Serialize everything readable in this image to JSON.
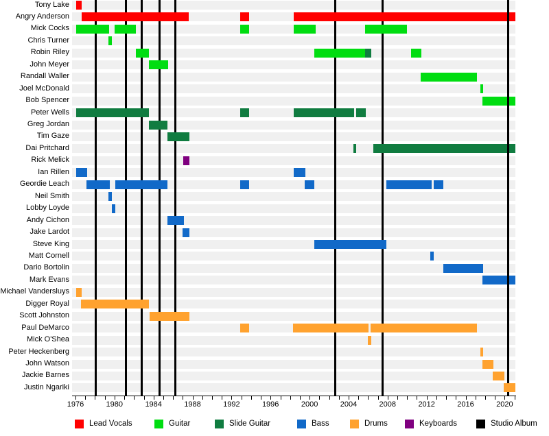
{
  "chart_data": {
    "type": "timeline-gantt",
    "description": "Band members timeline chart: horizontal colored bars per member by role over years, with vertical black lines marking studio albums",
    "axis": {
      "start_year": 1975.65,
      "end_year": 2021.1,
      "minor_tick_start": 1976,
      "minor_tick_end": 2021,
      "label_years": [
        1976,
        1980,
        1984,
        1988,
        1992,
        1996,
        2000,
        2004,
        2008,
        2012,
        2016,
        2020
      ]
    },
    "colors": {
      "lead_vocals": "#ff0000",
      "guitar": "#00dd11",
      "slide_guitar": "#107c40",
      "bass": "#1169c8",
      "drums": "#ffa22f",
      "keyboards": "#800080",
      "studio_album": "#000000",
      "row_stripe": "#f0f0f0"
    },
    "legend": [
      {
        "label": "Lead Vocals",
        "role": "lead_vocals"
      },
      {
        "label": "Guitar",
        "role": "guitar"
      },
      {
        "label": "Slide Guitar",
        "role": "slide_guitar"
      },
      {
        "label": "Bass",
        "role": "bass"
      },
      {
        "label": "Drums",
        "role": "drums"
      },
      {
        "label": "Keyboards",
        "role": "keyboards"
      },
      {
        "label": "Studio Album",
        "role": "studio_album"
      }
    ],
    "album_lines": [
      {
        "year": 1978.1,
        "layer": "back"
      },
      {
        "year": 1981.15,
        "layer": "back"
      },
      {
        "year": 1982.8,
        "layer": "back"
      },
      {
        "year": 1984.65,
        "layer": "back"
      },
      {
        "year": 1986.2,
        "layer": "back"
      },
      {
        "year": 2002.6,
        "layer": "back"
      },
      {
        "year": 2007.5,
        "layer": "back"
      },
      {
        "year": 2020.35,
        "layer": "front"
      }
    ],
    "members": [
      {
        "name": "Tony Lake",
        "spans": [
          {
            "role": "lead_vocals",
            "start": 1976.05,
            "end": 1976.65
          }
        ]
      },
      {
        "name": "Angry Anderson",
        "spans": [
          {
            "role": "lead_vocals",
            "start": 1976.65,
            "end": 1987.65
          },
          {
            "role": "lead_vocals",
            "start": 1992.9,
            "end": 1993.8
          },
          {
            "role": "lead_vocals",
            "start": 1998.35,
            "end": 2021.1
          }
        ]
      },
      {
        "name": "Mick Cocks",
        "spans": [
          {
            "role": "guitar",
            "start": 1976.05,
            "end": 1979.45
          },
          {
            "role": "guitar",
            "start": 1980.0,
            "end": 1982.2
          },
          {
            "role": "guitar",
            "start": 1992.9,
            "end": 1993.8
          },
          {
            "role": "guitar",
            "start": 1998.35,
            "end": 2000.6
          },
          {
            "role": "guitar",
            "start": 2005.7,
            "end": 2010.0
          }
        ]
      },
      {
        "name": "Chris Turner",
        "spans": [
          {
            "role": "guitar",
            "start": 1979.35,
            "end": 1979.7
          }
        ]
      },
      {
        "name": "Robin Riley",
        "spans": [
          {
            "role": "guitar",
            "start": 1982.2,
            "end": 1983.55
          },
          {
            "role": "guitar",
            "start": 2000.5,
            "end": 2005.7
          },
          {
            "role": "slide_guitar",
            "start": 2005.7,
            "end": 2006.35
          },
          {
            "role": "guitar",
            "start": 2010.4,
            "end": 2011.5
          }
        ]
      },
      {
        "name": "John Meyer",
        "spans": [
          {
            "role": "guitar",
            "start": 1983.55,
            "end": 1985.5
          }
        ]
      },
      {
        "name": "Randall Waller",
        "spans": [
          {
            "role": "guitar",
            "start": 2011.4,
            "end": 2017.2
          }
        ]
      },
      {
        "name": "Joel McDonald",
        "spans": [
          {
            "role": "guitar",
            "start": 2017.5,
            "end": 2017.8
          }
        ]
      },
      {
        "name": "Bob Spencer",
        "spans": [
          {
            "role": "guitar",
            "start": 2017.7,
            "end": 2021.1
          }
        ]
      },
      {
        "name": "Peter Wells",
        "spans": [
          {
            "role": "slide_guitar",
            "start": 1976.05,
            "end": 1983.55
          },
          {
            "role": "slide_guitar",
            "start": 1992.9,
            "end": 1993.8
          },
          {
            "role": "slide_guitar",
            "start": 1998.35,
            "end": 2004.55
          },
          {
            "role": "slide_guitar",
            "start": 2004.8,
            "end": 2005.8
          }
        ]
      },
      {
        "name": "Greg Jordan",
        "spans": [
          {
            "role": "slide_guitar",
            "start": 1983.55,
            "end": 1985.45
          }
        ]
      },
      {
        "name": "Tim Gaze",
        "spans": [
          {
            "role": "slide_guitar",
            "start": 1985.4,
            "end": 1987.65
          }
        ]
      },
      {
        "name": "Dai Pritchard",
        "spans": [
          {
            "role": "slide_guitar",
            "start": 2004.5,
            "end": 2004.8
          },
          {
            "role": "slide_guitar",
            "start": 2006.5,
            "end": 2021.1
          }
        ]
      },
      {
        "name": "Rick Melick",
        "spans": [
          {
            "role": "keyboards",
            "start": 1987.05,
            "end": 1987.65
          }
        ]
      },
      {
        "name": "Ian Rillen",
        "spans": [
          {
            "role": "bass",
            "start": 1976.05,
            "end": 1977.2
          },
          {
            "role": "bass",
            "start": 1998.35,
            "end": 1999.6
          }
        ]
      },
      {
        "name": "Geordie Leach",
        "spans": [
          {
            "role": "bass",
            "start": 1977.1,
            "end": 1979.5
          },
          {
            "role": "bass",
            "start": 1980.1,
            "end": 1985.45
          },
          {
            "role": "bass",
            "start": 1992.9,
            "end": 1993.8
          },
          {
            "role": "bass",
            "start": 1999.5,
            "end": 2000.5
          },
          {
            "role": "bass",
            "start": 2007.85,
            "end": 2012.5
          },
          {
            "role": "bass",
            "start": 2012.7,
            "end": 2013.75
          }
        ]
      },
      {
        "name": "Neil Smith",
        "spans": [
          {
            "role": "bass",
            "start": 1979.4,
            "end": 1979.7
          }
        ]
      },
      {
        "name": "Lobby Loyde",
        "spans": [
          {
            "role": "bass",
            "start": 1979.7,
            "end": 1980.1
          }
        ]
      },
      {
        "name": "Andy Cichon",
        "spans": [
          {
            "role": "bass",
            "start": 1985.4,
            "end": 1987.15
          }
        ]
      },
      {
        "name": "Jake Lardot",
        "spans": [
          {
            "role": "bass",
            "start": 1987.0,
            "end": 1987.7
          }
        ]
      },
      {
        "name": "Steve King",
        "spans": [
          {
            "role": "bass",
            "start": 2000.5,
            "end": 2007.85
          }
        ]
      },
      {
        "name": "Matt Cornell",
        "spans": [
          {
            "role": "bass",
            "start": 2012.4,
            "end": 2012.7
          }
        ]
      },
      {
        "name": "Dario Bortolin",
        "spans": [
          {
            "role": "bass",
            "start": 2013.7,
            "end": 2017.8
          }
        ]
      },
      {
        "name": "Mark Evans",
        "spans": [
          {
            "role": "bass",
            "start": 2017.7,
            "end": 2021.1
          }
        ]
      },
      {
        "name": "Michael Vandersluys",
        "spans": [
          {
            "role": "drums",
            "start": 1976.05,
            "end": 1976.65
          }
        ]
      },
      {
        "name": "Digger Royal",
        "spans": [
          {
            "role": "drums",
            "start": 1976.55,
            "end": 1983.5
          }
        ]
      },
      {
        "name": "Scott Johnston",
        "spans": [
          {
            "role": "drums",
            "start": 1983.6,
            "end": 1987.7
          }
        ]
      },
      {
        "name": "Paul DeMarco",
        "spans": [
          {
            "role": "drums",
            "start": 1992.9,
            "end": 1993.8
          },
          {
            "role": "drums",
            "start": 1998.3,
            "end": 2006.05
          },
          {
            "role": "drums",
            "start": 2006.25,
            "end": 2017.2
          }
        ]
      },
      {
        "name": "Mick O'Shea",
        "spans": [
          {
            "role": "drums",
            "start": 2006.0,
            "end": 2006.3
          }
        ]
      },
      {
        "name": "Peter Heckenberg",
        "spans": [
          {
            "role": "drums",
            "start": 2017.5,
            "end": 2017.8
          }
        ]
      },
      {
        "name": "John Watson",
        "spans": [
          {
            "role": "drums",
            "start": 2017.7,
            "end": 2018.85
          }
        ]
      },
      {
        "name": "Jackie Barnes",
        "spans": [
          {
            "role": "drums",
            "start": 2018.75,
            "end": 2019.95
          }
        ]
      },
      {
        "name": "Justin Ngariki",
        "spans": [
          {
            "role": "drums",
            "start": 2019.9,
            "end": 2021.1,
            "front": true
          }
        ]
      }
    ]
  }
}
